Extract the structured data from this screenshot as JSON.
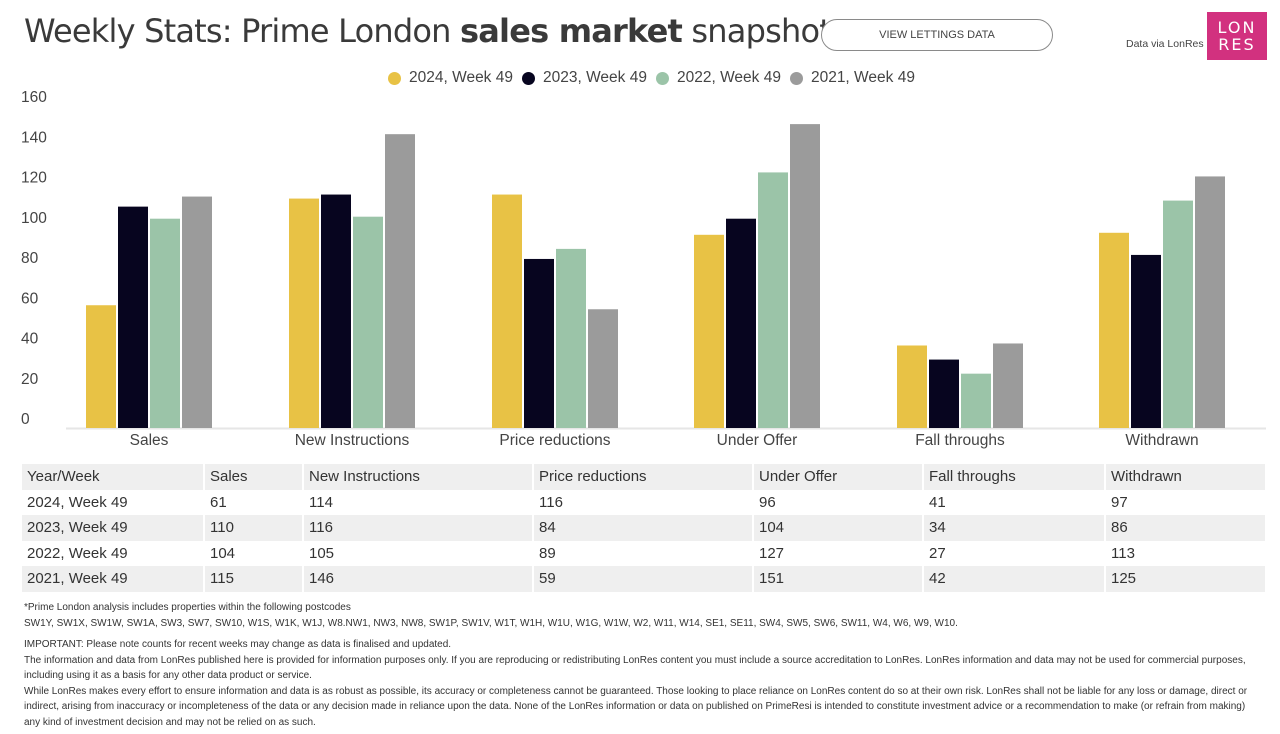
{
  "header": {
    "title_pre": "Weekly Stats: Prime London ",
    "title_bold": "sales market",
    "title_post": " snapshot",
    "lettings_button": "VIEW LETTINGS DATA",
    "data_via": "Data via LonRes",
    "logo_line1": "LON",
    "logo_line2": "RES",
    "logo_color": "#d2317f"
  },
  "chart_data": {
    "type": "bar",
    "title": "Weekly Stats: Prime London sales market snapshot",
    "xlabel": "",
    "ylabel": "",
    "ylim": [
      0,
      160
    ],
    "yticks": [
      "0",
      "20",
      "40",
      "60",
      "80",
      "100",
      "120",
      "140",
      "160"
    ],
    "legend_position": "top",
    "grid": false,
    "categories": [
      "Sales",
      "New Instructions",
      "Price reductions",
      "Under Offer",
      "Fall throughs",
      "Withdrawn"
    ],
    "series": [
      {
        "name": "2024, Week 49",
        "color": "#e8c245",
        "values": [
          61,
          114,
          116,
          96,
          41,
          97
        ]
      },
      {
        "name": "2023, Week 49",
        "color": "#07051f",
        "values": [
          110,
          116,
          84,
          104,
          34,
          86
        ]
      },
      {
        "name": "2022, Week 49",
        "color": "#9bc4a8",
        "values": [
          104,
          105,
          89,
          127,
          27,
          113
        ]
      },
      {
        "name": "2021, Week 49",
        "color": "#9b9b9b",
        "values": [
          115,
          146,
          59,
          151,
          42,
          125
        ]
      }
    ]
  },
  "table": {
    "headers": [
      "Year/Week",
      "Sales",
      "New Instructions",
      "Price reductions",
      "Under Offer",
      "Fall throughs",
      "Withdrawn"
    ],
    "rows": [
      [
        "2024, Week 49",
        "61",
        "114",
        "116",
        "96",
        "41",
        "97"
      ],
      [
        "2023, Week 49",
        "110",
        "116",
        "84",
        "104",
        "34",
        "86"
      ],
      [
        "2022, Week 49",
        "104",
        "105",
        "89",
        "127",
        "27",
        "113"
      ],
      [
        "2021, Week 49",
        "115",
        "146",
        "59",
        "151",
        "42",
        "125"
      ]
    ]
  },
  "notes": {
    "postcodes_intro": "*Prime London analysis includes properties within the following postcodes",
    "postcodes": "SW1Y, SW1X, SW1W, SW1A, SW3, SW7, SW10, W1S, W1K, W1J, W8.NW1, NW3, NW8, SW1P, SW1V, W1T, W1H, W1U, W1G, W1W, W2, W11, W14, SE1, SE11, SW4, SW5, SW6, SW11, W4, W6, W9, W10.",
    "important": "IMPORTANT: Please note counts for recent weeks may change as data is finalised and updated.",
    "info": "The information and data from LonRes published here is provided for information purposes only. If you are reproducing or redistributing LonRes content you must include a source accreditation to LonRes. LonRes information and data may not be used for commercial purposes, including using it as a basis for any other data product or service.",
    "disclaimer": "While LonRes makes every effort to ensure information and data is as robust as possible, its accuracy or completeness cannot be guaranteed. Those looking to place reliance on LonRes content do so at their own risk. LonRes shall not be liable for any loss or damage, direct or indirect, arising from inaccuracy or incompleteness of the data or any decision made in reliance upon the data. None of the LonRes information or data on published on PrimeResi is intended to constitute investment advice or a recommendation to make (or refrain from making) any kind of investment decision and may not be relied on as such."
  }
}
